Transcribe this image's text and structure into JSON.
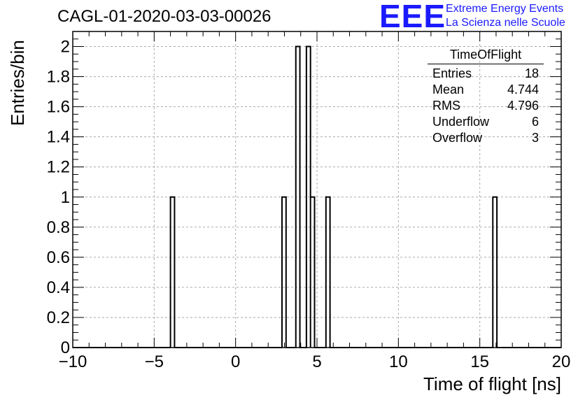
{
  "title": "CAGL-01-2020-03-03-00026",
  "logo": {
    "mark": "EEE",
    "line1": "Extreme Energy Events",
    "line2": "La Scienza nelle Scuole"
  },
  "stats": {
    "title": "TimeOfFlight",
    "rows": [
      {
        "label": "Entries",
        "value": "18"
      },
      {
        "label": "Mean",
        "value": "4.744"
      },
      {
        "label": "RMS",
        "value": "4.796"
      },
      {
        "label": "Underflow",
        "value": "6"
      },
      {
        "label": "Overflow",
        "value": "3"
      }
    ]
  },
  "chart_data": {
    "type": "bar",
    "title": "CAGL-01-2020-03-03-00026",
    "xlabel": "Time of flight [ns]",
    "ylabel": "Entries/bin",
    "xlim": [
      -10,
      20
    ],
    "ylim": [
      0,
      2.1
    ],
    "x_ticks": [
      -10,
      -5,
      0,
      5,
      10,
      15,
      20
    ],
    "y_ticks": [
      0,
      0.2,
      0.4,
      0.6,
      0.8,
      1,
      1.2,
      1.4,
      1.6,
      1.8,
      2
    ],
    "x_tick_labels": [
      "−10",
      "−5",
      "0",
      "5",
      "10",
      "15",
      "20"
    ],
    "y_tick_labels": [
      "0",
      "0.2",
      "0.4",
      "0.6",
      "0.8",
      "1",
      "1.2",
      "1.4",
      "1.6",
      "1.8",
      "2"
    ],
    "bin_width": 0.25,
    "bins": [
      {
        "x_low": -4.0,
        "count": 1
      },
      {
        "x_low": 2.85,
        "count": 1
      },
      {
        "x_low": 3.7,
        "count": 2
      },
      {
        "x_low": 4.35,
        "count": 2
      },
      {
        "x_low": 4.6,
        "count": 1
      },
      {
        "x_low": 5.55,
        "count": 1
      },
      {
        "x_low": 15.8,
        "count": 1
      }
    ],
    "grid": true,
    "colors": {
      "line": "#000000",
      "grid": "#aaaaaa"
    }
  }
}
